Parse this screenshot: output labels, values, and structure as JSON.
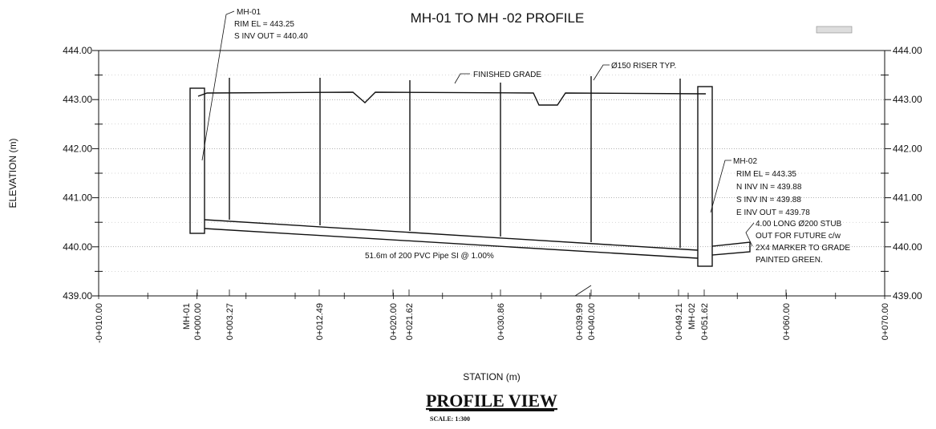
{
  "title": "MH-01 TO MH -02 PROFILE",
  "y_axis": {
    "label": "ELEVATION (m)",
    "ticks": [
      "444.00",
      "443.00",
      "442.00",
      "441.00",
      "440.00",
      "439.00"
    ]
  },
  "x_axis": {
    "label": "STATION (m)",
    "ticks": [
      "-0+010.00",
      "MH-01",
      "0+000.00",
      "0+003.27",
      "0+012.49",
      "0+020.00",
      "0+021.62",
      "0+030.86",
      "0+039.99",
      "0+040.00",
      "0+049.21",
      "MH-02",
      "0+051.62",
      "0+060.00",
      "0+070.00"
    ]
  },
  "annotations": {
    "mh01": [
      "MH-01",
      "RIM EL = 443.25",
      "S INV OUT = 440.40"
    ],
    "mh02": [
      "MH-02",
      "RIM EL = 443.35",
      "N INV IN = 439.88",
      "S INV IN = 439.88",
      "E INV OUT = 439.78"
    ],
    "stub": [
      "4.00 LONG Ø200 STUB",
      "OUT FOR FUTURE c/w",
      "2X4 MARKER TO GRADE",
      "PAINTED GREEN."
    ],
    "finished_grade": "FINISHED GRADE",
    "riser": "Ø150 RISER TYP.",
    "pipe": "51.6m of 200 PVC Pipe SI @ 1.00%"
  },
  "footer": {
    "title": "PROFILE VIEW",
    "scale": "SCALE: 1:300"
  }
}
